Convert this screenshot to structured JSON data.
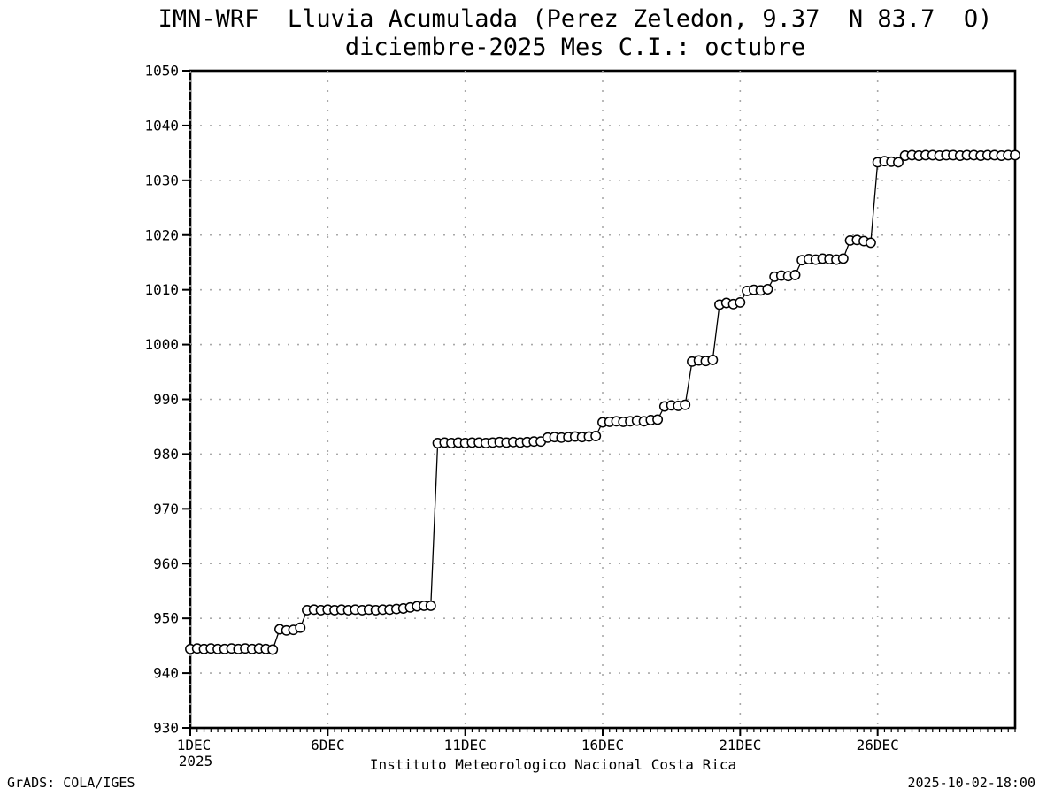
{
  "header": {
    "title_line1": "IMN-WRF  Lluvia Acumulada (Perez Zeledon, 9.37  N 83.7  O)",
    "title_line2": "diciembre-2025 Mes C.I.: octubre"
  },
  "footer": {
    "grads_credit": "GrADS: COLA/IGES",
    "institute": "Instituto Meteorologico Nacional Costa Rica",
    "timestamp": "2025-10-02-18:00"
  },
  "chart_data": {
    "type": "line",
    "title": "IMN-WRF  Lluvia Acumulada (Perez Zeledon, 9.37  N 83.7  O)",
    "subtitle": "diciembre-2025 Mes C.I.: octubre",
    "xlabel": "",
    "ylabel": "",
    "ylim": [
      930,
      1050
    ],
    "y_ticks": [
      930,
      940,
      950,
      960,
      970,
      980,
      990,
      1000,
      1010,
      1020,
      1030,
      1040,
      1050
    ],
    "x_tick_labels": [
      "1DEC",
      "6DEC",
      "11DEC",
      "16DEC",
      "21DEC",
      "26DEC"
    ],
    "x_tick_year_label": "2025",
    "x_tick_day_offsets": [
      0,
      5,
      10,
      15,
      20,
      25
    ],
    "x_total_days": 30,
    "sample_interval_hours": 6,
    "grid": "dotted",
    "legend": "none",
    "marker": "open-circle",
    "line_color": "#000000",
    "grid_color": "#a9a9a9",
    "marker_fill": "#ffffff",
    "series_name": "Lluvia acumulada (mm)",
    "values": [
      944.4,
      944.5,
      944.4,
      944.5,
      944.4,
      944.4,
      944.5,
      944.4,
      944.5,
      944.4,
      944.5,
      944.4,
      944.3,
      948.0,
      947.8,
      947.9,
      948.3,
      951.5,
      951.6,
      951.5,
      951.6,
      951.5,
      951.6,
      951.5,
      951.6,
      951.5,
      951.6,
      951.5,
      951.6,
      951.6,
      951.7,
      951.8,
      952.0,
      952.2,
      952.3,
      952.3,
      982.0,
      982.1,
      982.0,
      982.1,
      982.0,
      982.1,
      982.1,
      982.0,
      982.1,
      982.2,
      982.1,
      982.2,
      982.1,
      982.2,
      982.3,
      982.3,
      983.0,
      983.1,
      983.0,
      983.1,
      983.2,
      983.1,
      983.2,
      983.3,
      985.8,
      985.9,
      986.0,
      985.9,
      986.0,
      986.1,
      986.0,
      986.2,
      986.3,
      988.7,
      988.9,
      988.8,
      989.0,
      996.9,
      997.1,
      997.0,
      997.2,
      1007.3,
      1007.6,
      1007.4,
      1007.7,
      1009.8,
      1010.0,
      1009.9,
      1010.1,
      1012.4,
      1012.6,
      1012.5,
      1012.7,
      1015.4,
      1015.6,
      1015.5,
      1015.7,
      1015.6,
      1015.5,
      1015.7,
      1019.0,
      1019.1,
      1018.9,
      1018.6,
      1033.3,
      1033.5,
      1033.4,
      1033.3,
      1034.5,
      1034.6,
      1034.5,
      1034.6,
      1034.6,
      1034.5,
      1034.6,
      1034.6,
      1034.5,
      1034.6,
      1034.6,
      1034.5,
      1034.6,
      1034.6,
      1034.5,
      1034.6,
      1034.6
    ]
  }
}
